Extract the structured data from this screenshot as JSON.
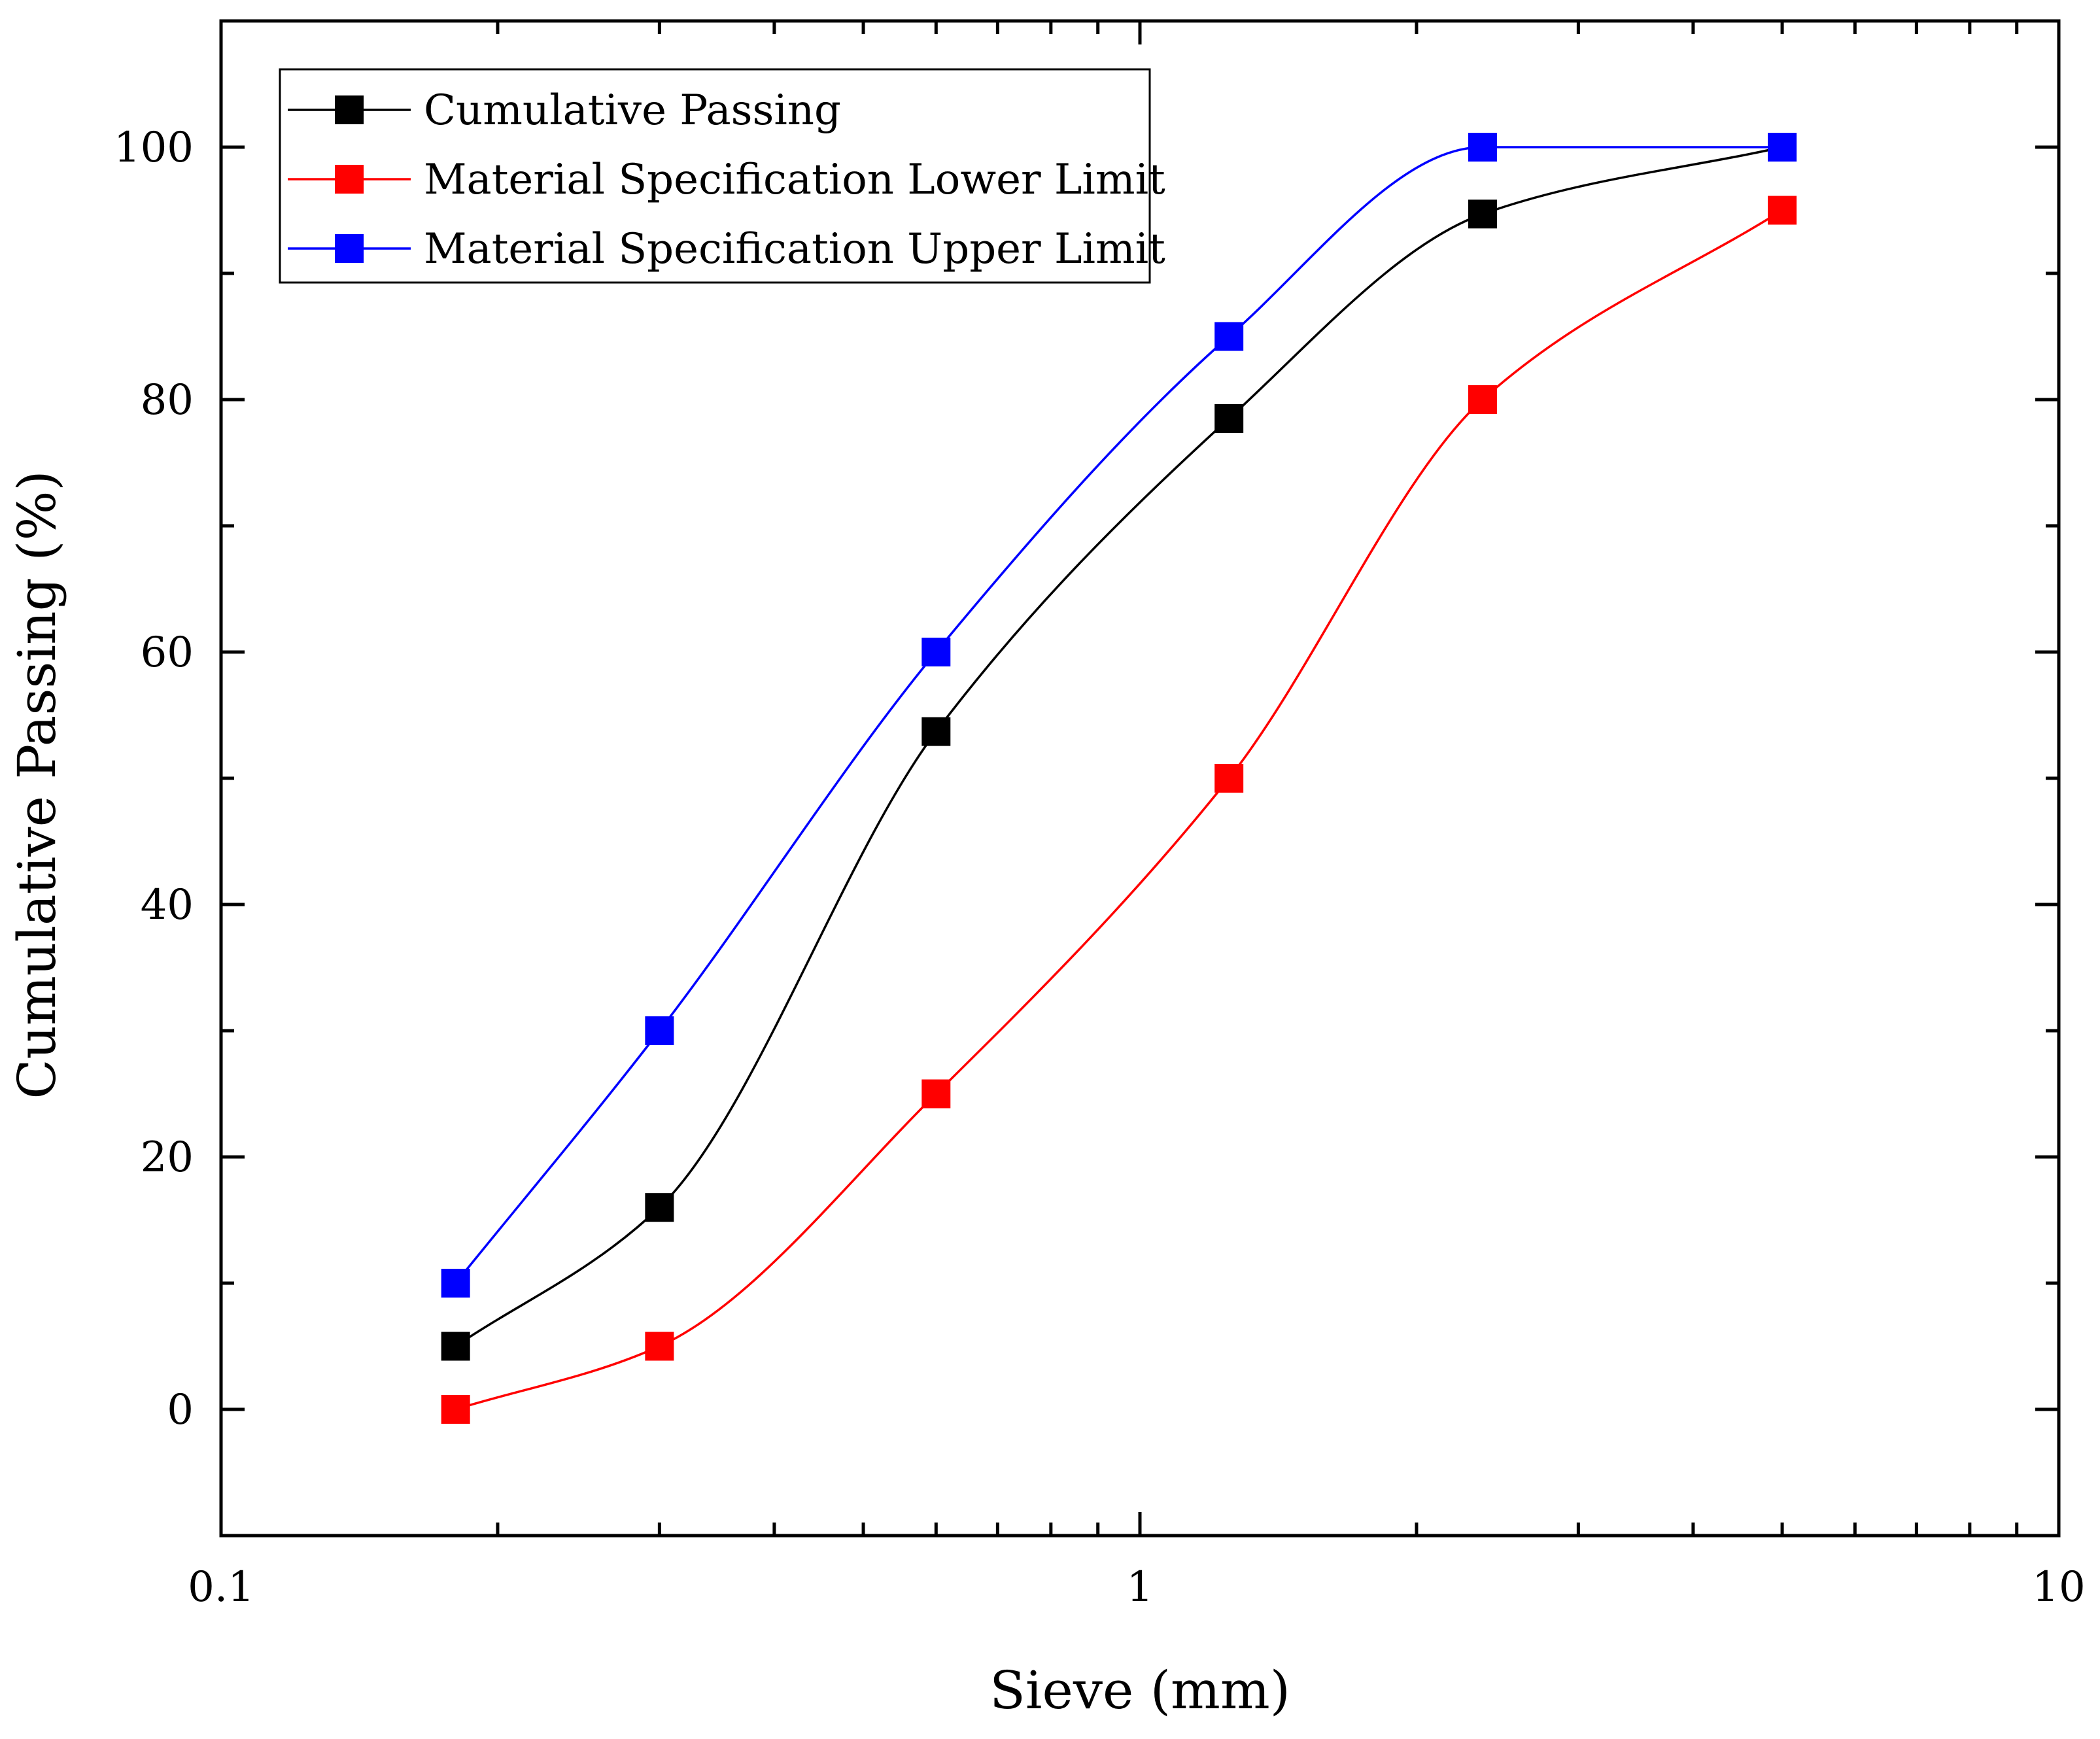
{
  "chart_data": {
    "type": "line",
    "xscale": "log",
    "xlabel": "Sieve (mm)",
    "ylabel": "Cumulative Passing (%)",
    "xlim": [
      0.1,
      10
    ],
    "ylim": [
      -10,
      110
    ],
    "xticks": [
      {
        "value": 0.1,
        "label": "0.1"
      },
      {
        "value": 1,
        "label": "1"
      },
      {
        "value": 10,
        "label": "10"
      }
    ],
    "yticks": [
      {
        "value": 0,
        "label": "0"
      },
      {
        "value": 20,
        "label": "20"
      },
      {
        "value": 40,
        "label": "40"
      },
      {
        "value": 60,
        "label": "60"
      },
      {
        "value": 80,
        "label": "80"
      },
      {
        "value": 100,
        "label": "100"
      }
    ],
    "legend_position": "top-left",
    "series": [
      {
        "name": "Cumulative Passing",
        "color": "#000000",
        "x": [
          0.18,
          0.3,
          0.6,
          1.25,
          2.36,
          5.0
        ],
        "y": [
          5,
          16,
          53.7,
          78.5,
          94.7,
          100
        ]
      },
      {
        "name": "Material Specification Lower Limit",
        "color": "#ff0000",
        "x": [
          0.18,
          0.3,
          0.6,
          1.25,
          2.36,
          5.0
        ],
        "y": [
          0,
          5,
          25,
          50,
          80,
          95
        ]
      },
      {
        "name": "Material Specification Upper Limit",
        "color": "#0000ff",
        "x": [
          0.18,
          0.3,
          0.6,
          1.25,
          2.36,
          5.0
        ],
        "y": [
          10,
          30,
          60,
          85,
          100,
          100
        ]
      }
    ]
  }
}
